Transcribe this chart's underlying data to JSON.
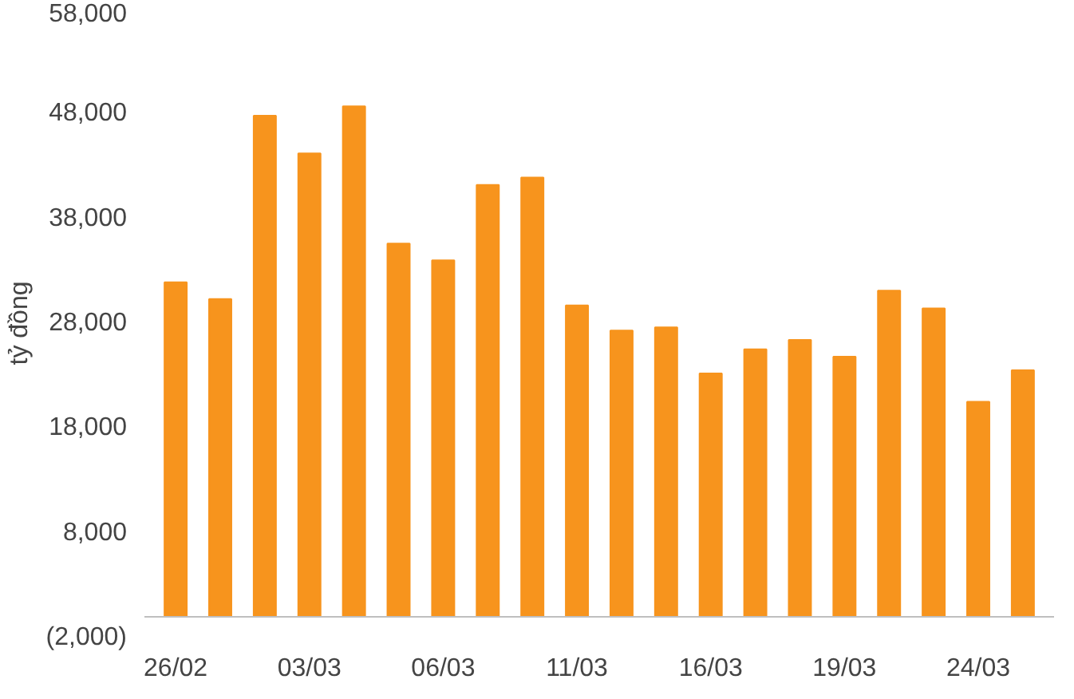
{
  "chart_data": {
    "type": "bar",
    "ylabel": "tỷ đồng",
    "categories": [
      "26/02",
      null,
      null,
      "03/03",
      null,
      null,
      "06/03",
      null,
      null,
      "11/03",
      null,
      null,
      "16/03",
      null,
      null,
      "19/03",
      null,
      null,
      "24/03",
      null
    ],
    "values": [
      31900,
      30300,
      47800,
      44200,
      48700,
      35600,
      34000,
      41200,
      41900,
      29700,
      27300,
      27600,
      23200,
      25500,
      26400,
      24800,
      31100,
      29400,
      20500,
      23500
    ],
    "color": "#f7941d",
    "ylim": [
      -2000,
      58000
    ],
    "yticks": [
      {
        "value": -2000,
        "label": "(2,000)"
      },
      {
        "value": 8000,
        "label": "8,000"
      },
      {
        "value": 18000,
        "label": "18,000"
      },
      {
        "value": 28000,
        "label": "28,000"
      },
      {
        "value": 38000,
        "label": "38,000"
      },
      {
        "value": 48000,
        "label": "48,000"
      },
      {
        "value": 58000,
        "label": "58,000"
      }
    ],
    "grid": false
  }
}
